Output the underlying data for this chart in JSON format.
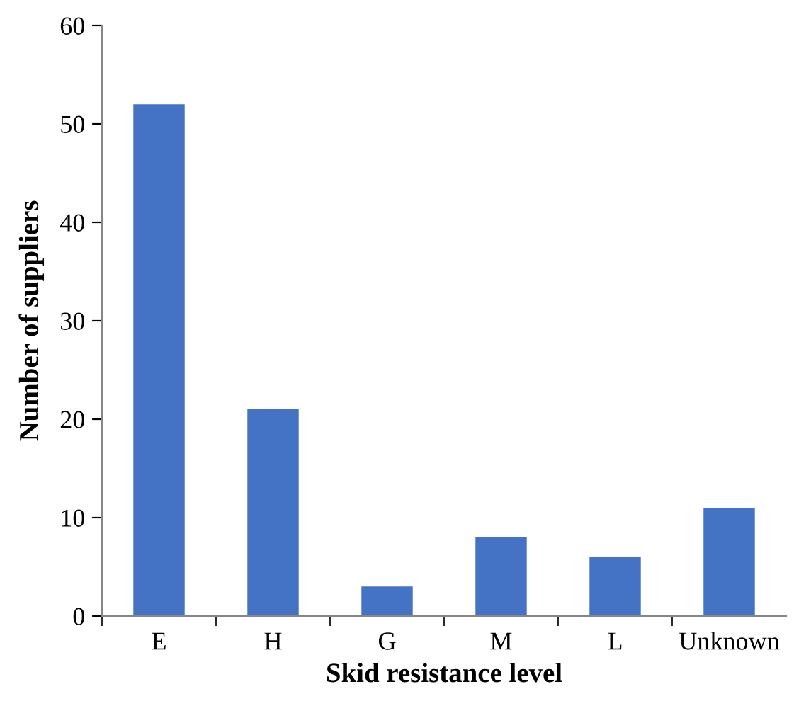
{
  "chart_data": {
    "type": "bar",
    "xlabel": "Skid resistance level",
    "ylabel": "Number of suppliers",
    "categories": [
      "E",
      "H",
      "G",
      "M",
      "L",
      "Unknown"
    ],
    "values": [
      52,
      21,
      3,
      8,
      6,
      11
    ],
    "color": "#4472c4",
    "ylim": [
      0,
      60
    ],
    "yticks": [
      0,
      10,
      20,
      30,
      40,
      50,
      60
    ],
    "grid": false,
    "legend": false
  }
}
